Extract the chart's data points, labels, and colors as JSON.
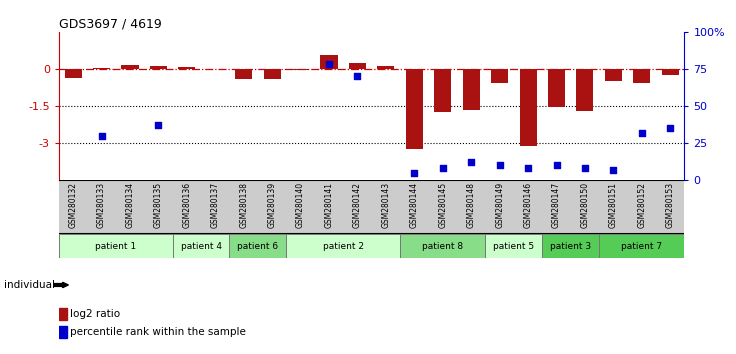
{
  "title": "GDS3697 / 4619",
  "samples": [
    "GSM280132",
    "GSM280133",
    "GSM280134",
    "GSM280135",
    "GSM280136",
    "GSM280137",
    "GSM280138",
    "GSM280139",
    "GSM280140",
    "GSM280141",
    "GSM280142",
    "GSM280143",
    "GSM280144",
    "GSM280145",
    "GSM280148",
    "GSM280149",
    "GSM280146",
    "GSM280147",
    "GSM280150",
    "GSM280151",
    "GSM280152",
    "GSM280153"
  ],
  "log2_ratio": [
    -0.35,
    0.05,
    0.15,
    0.1,
    0.08,
    -0.02,
    -0.4,
    -0.4,
    -0.05,
    0.55,
    0.25,
    0.12,
    -3.25,
    -1.75,
    -1.65,
    -0.55,
    -3.1,
    -1.55,
    -1.7,
    -0.5,
    -0.55,
    -0.25
  ],
  "percentile": [
    null,
    30,
    null,
    37,
    null,
    null,
    null,
    null,
    null,
    78,
    70,
    null,
    5,
    8,
    12,
    10,
    8,
    10,
    8,
    7,
    32,
    35
  ],
  "patients": [
    {
      "label": "patient 1",
      "start": 0,
      "end": 4,
      "color": "#ccffcc"
    },
    {
      "label": "patient 4",
      "start": 4,
      "end": 6,
      "color": "#ccffcc"
    },
    {
      "label": "patient 6",
      "start": 6,
      "end": 8,
      "color": "#88dd88"
    },
    {
      "label": "patient 2",
      "start": 8,
      "end": 12,
      "color": "#ccffcc"
    },
    {
      "label": "patient 8",
      "start": 12,
      "end": 15,
      "color": "#88dd88"
    },
    {
      "label": "patient 5",
      "start": 15,
      "end": 17,
      "color": "#ccffcc"
    },
    {
      "label": "patient 3",
      "start": 17,
      "end": 19,
      "color": "#55cc55"
    },
    {
      "label": "patient 7",
      "start": 19,
      "end": 22,
      "color": "#55cc55"
    }
  ],
  "ylim_left": [
    -4.5,
    1.5
  ],
  "ylim_right": [
    0,
    100
  ],
  "yticks_left": [
    0,
    -1.5,
    -3
  ],
  "yticks_right": [
    0,
    25,
    50,
    75,
    100
  ],
  "bar_color": "#aa1111",
  "dot_color": "#0000cc",
  "zero_line_color": "#cc0000",
  "grid_line_color": "#000000",
  "bg_color": "#ffffff",
  "plot_bg": "#ffffff",
  "sample_bg": "#cccccc"
}
